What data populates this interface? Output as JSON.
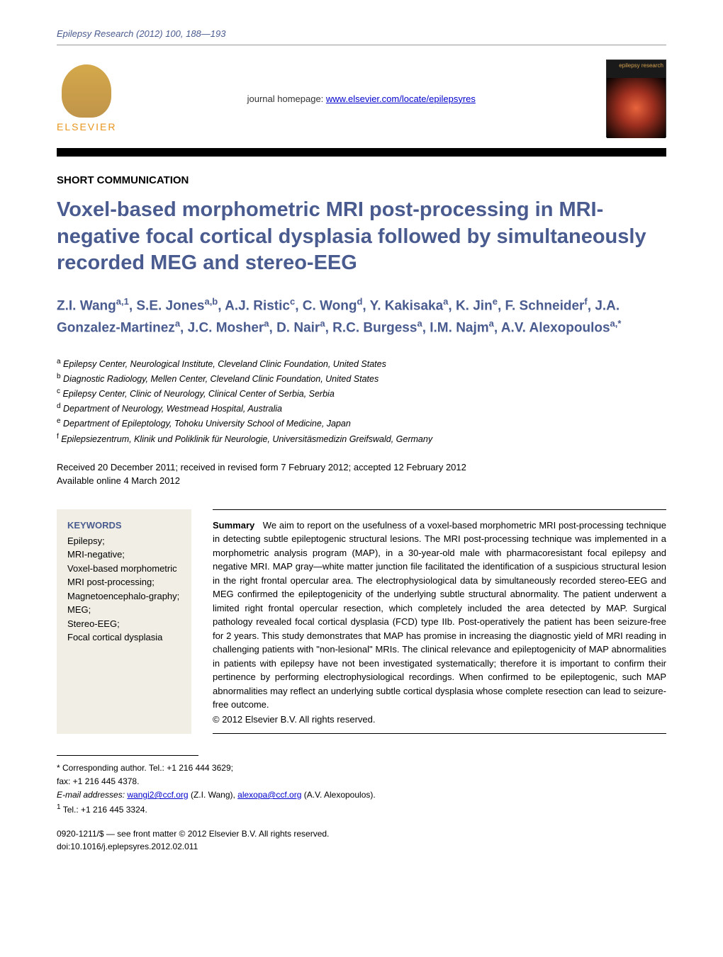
{
  "header": {
    "citation": "Epilepsy Research (2012) 100, 188—193",
    "homepage_label": "journal homepage: ",
    "homepage_url": "www.elsevier.com/locate/epilepsyres",
    "publisher": "ELSEVIER",
    "cover_text": "epilepsy research"
  },
  "article": {
    "type": "SHORT COMMUNICATION",
    "title": "Voxel-based morphometric MRI post-processing in MRI-negative focal cortical dysplasia followed by simultaneously recorded MEG and stereo-EEG"
  },
  "authors": {
    "list": "Z.I. Wang",
    "a1_sup": "a,1",
    "a2": ", S.E. Jones",
    "a2_sup": "a,b",
    "a3": ", A.J. Ristic",
    "a3_sup": "c",
    "a4": ", C. Wong",
    "a4_sup": "d",
    "a5": ", Y. Kakisaka",
    "a5_sup": "a",
    "a6": ", K. Jin",
    "a6_sup": "e",
    "a7": ", F. Schneider",
    "a7_sup": "f",
    "a8": ", J.A. Gonzalez-Martinez",
    "a8_sup": "a",
    "a9": ", J.C. Mosher",
    "a9_sup": "a",
    "a10": ", D. Nair",
    "a10_sup": "a",
    "a11": ", R.C. Burgess",
    "a11_sup": "a",
    "a12": ", I.M. Najm",
    "a12_sup": "a",
    "a13": ", A.V. Alexopoulos",
    "a13_sup": "a,*"
  },
  "affiliations": {
    "a": "Epilepsy Center, Neurological Institute, Cleveland Clinic Foundation, United States",
    "b": "Diagnostic Radiology, Mellen Center, Cleveland Clinic Foundation, United States",
    "c": "Epilepsy Center, Clinic of Neurology, Clinical Center of Serbia, Serbia",
    "d": "Department of Neurology, Westmead Hospital, Australia",
    "e": "Department of Epileptology, Tohoku University School of Medicine, Japan",
    "f": "Epilepsiezentrum, Klinik und Poliklinik für Neurologie, Universitäsmedizin Greifswald, Germany"
  },
  "dates": {
    "received": "Received 20 December 2011; received in revised form 7 February 2012; accepted 12 February 2012",
    "online": "Available online 4 March 2012"
  },
  "keywords": {
    "title": "KEYWORDS",
    "items": "Epilepsy;\nMRI-negative;\nVoxel-based morphometric MRI post-processing;\nMagnetoencephalo-graphy;\nMEG;\nStereo-EEG;\nFocal cortical dysplasia"
  },
  "summary": {
    "label": "Summary",
    "text": "We aim to report on the usefulness of a voxel-based morphometric MRI post-processing technique in detecting subtle epileptogenic structural lesions. The MRI post-processing technique was implemented in a morphometric analysis program (MAP), in a 30-year-old male with pharmacoresistant focal epilepsy and negative MRI. MAP gray—white matter junction file facilitated the identification of a suspicious structural lesion in the right frontal opercular area. The electrophysiological data by simultaneously recorded stereo-EEG and MEG confirmed the epileptogenicity of the underlying subtle structural abnormality. The patient underwent a limited right frontal opercular resection, which completely included the area detected by MAP. Surgical pathology revealed focal cortical dysplasia (FCD) type IIb. Post-operatively the patient has been seizure-free for 2 years. This study demonstrates that MAP has promise in increasing the diagnostic yield of MRI reading in challenging patients with \"non-lesional\" MRIs. The clinical relevance and epileptogenicity of MAP abnormalities in patients with epilepsy have not been investigated systematically; therefore it is important to confirm their pertinence by performing electrophysiological recordings. When confirmed to be epileptogenic, such MAP abnormalities may reflect an underlying subtle cortical dysplasia whose complete resection can lead to seizure-free outcome.",
    "copyright": "© 2012 Elsevier B.V. All rights reserved."
  },
  "corresponding": {
    "star": "* Corresponding author. Tel.: +1 216 444 3629;",
    "fax": "fax: +1 216 445 4378.",
    "email_label": "E-mail addresses: ",
    "email1": "wangi2@ccf.org",
    "email1_name": " (Z.I. Wang), ",
    "email2": "alexopa@ccf.org",
    "email2_name": " (A.V. Alexopoulos).",
    "tel1": "Tel.: +1 216 445 3324.",
    "tel1_sup": "1"
  },
  "bottom": {
    "issn": "0920-1211/$ — see front matter © 2012 Elsevier B.V. All rights reserved.",
    "doi": "doi:10.1016/j.eplepsyres.2012.02.011"
  },
  "colors": {
    "header_blue": "#4a5c8f",
    "link_blue": "#0000cc",
    "elsevier_orange": "#e8951d",
    "keywords_bg": "#f0eee5"
  }
}
